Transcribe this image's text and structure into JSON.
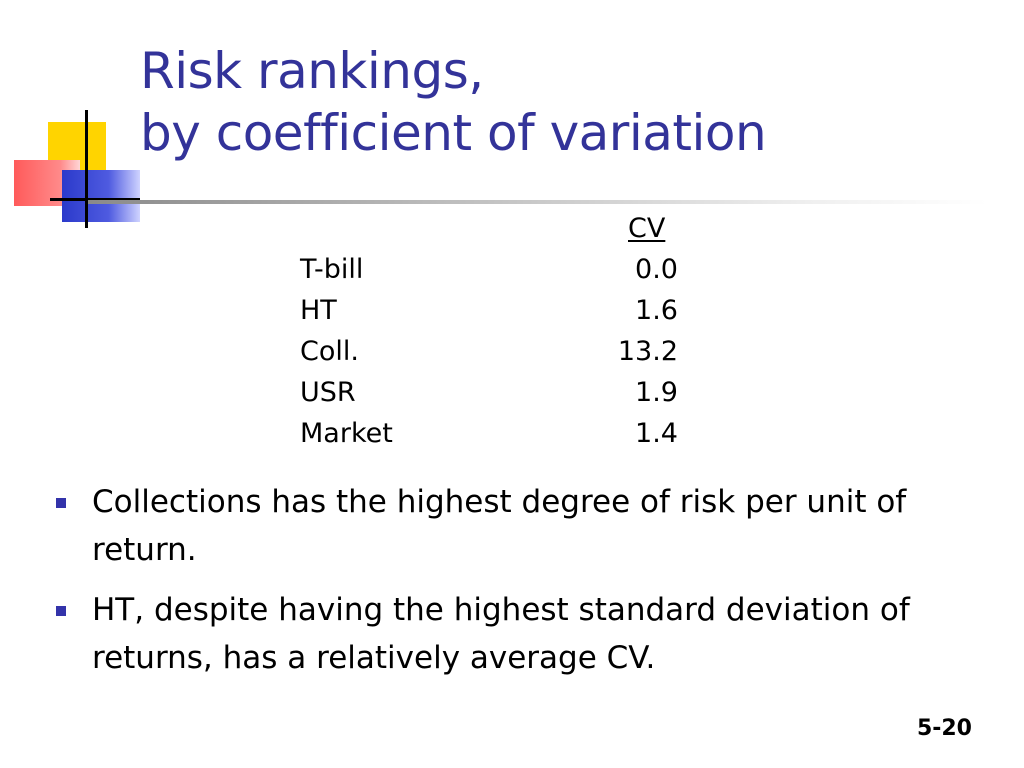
{
  "title": {
    "line1": "Risk rankings,",
    "line2": "by coefficient of variation"
  },
  "table": {
    "header": "CV",
    "rows": [
      {
        "label": "T-bill",
        "value": "0.0"
      },
      {
        "label": "HT",
        "value": "1.6"
      },
      {
        "label": "Coll.",
        "value": "13.2"
      },
      {
        "label": "USR",
        "value": "1.9"
      },
      {
        "label": "Market",
        "value": "1.4"
      }
    ]
  },
  "bullets": [
    "Collections has the highest degree of risk per unit of return.",
    "HT, despite having the highest standard deviation of returns, has a relatively average CV."
  ],
  "slide_number": "5-20",
  "colors": {
    "title": "#333399",
    "bullet": "#3333aa",
    "logo_yellow": "#ffd400",
    "logo_red": "#ff5a5a",
    "logo_blue": "#2b3acb"
  },
  "icons": {
    "logo": "colored-squares-crosshair-logo",
    "bullet": "square-bullet-icon"
  }
}
